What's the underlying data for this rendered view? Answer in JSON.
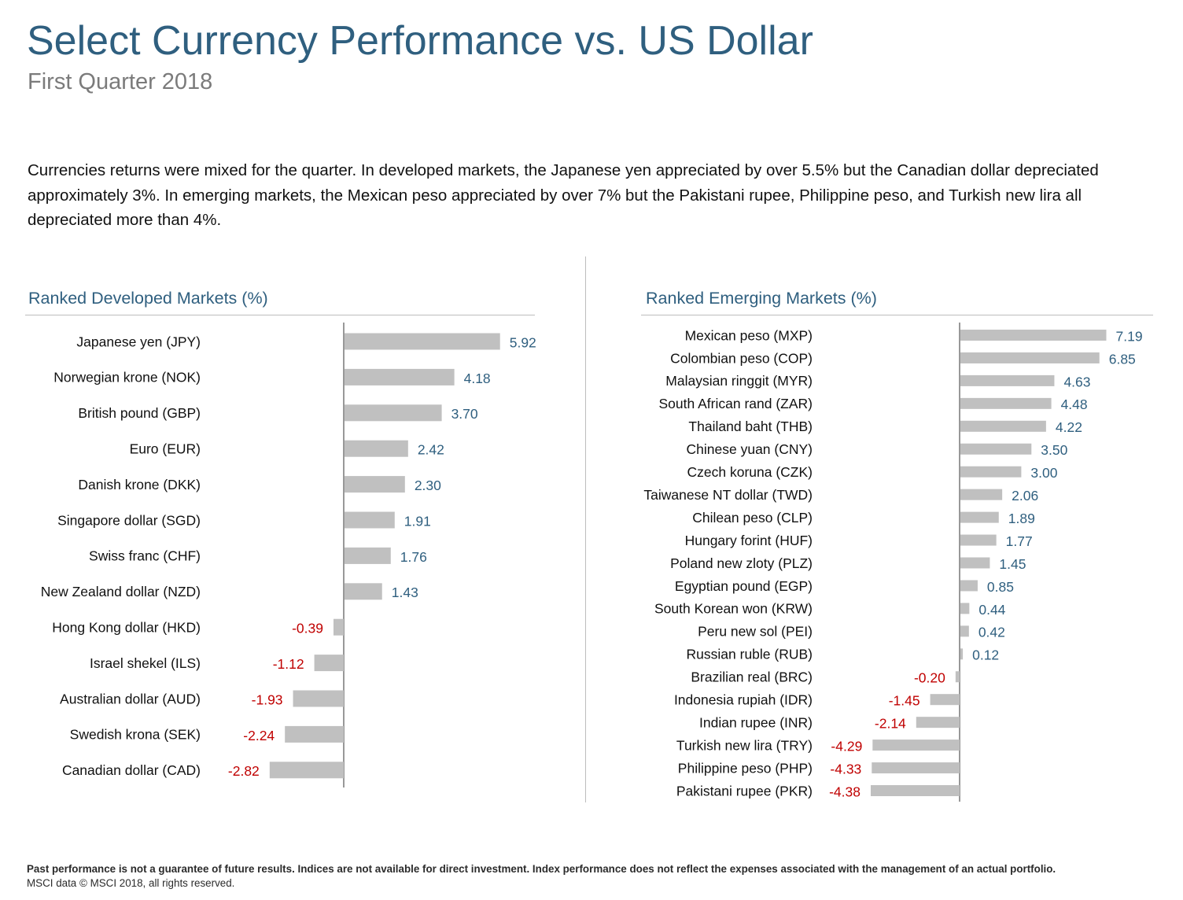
{
  "header": {
    "title": "Select Currency Performance vs. US Dollar",
    "subtitle": "First Quarter 2018"
  },
  "summary": "Currencies returns were mixed for the quarter. In developed markets, the Japanese yen appreciated by over 5.5% but the Canadian dollar depreciated approximately 3%. In emerging markets, the Mexican peso appreciated by over 7% but the Pakistani rupee, Philippine peso, and Turkish new lira all depreciated more than 4%.",
  "colors": {
    "title": "#2f5f7f",
    "bar": "#c0c0c0",
    "positive_label": "#2f5f7f",
    "negative_label": "#c00000"
  },
  "chart_data": [
    {
      "type": "bar",
      "orientation": "horizontal",
      "title": "Ranked Developed Markets (%)",
      "categories": [
        "Japanese yen (JPY)",
        "Norwegian krone (NOK)",
        "British pound (GBP)",
        "Euro (EUR)",
        "Danish krone (DKK)",
        "Singapore dollar (SGD)",
        "Swiss franc (CHF)",
        "New Zealand dollar (NZD)",
        "Hong Kong dollar (HKD)",
        "Israel shekel (ILS)",
        "Australian dollar (AUD)",
        "Swedish krona (SEK)",
        "Canadian dollar (CAD)"
      ],
      "values": [
        5.92,
        4.18,
        3.7,
        2.42,
        2.3,
        1.91,
        1.76,
        1.43,
        -0.39,
        -1.12,
        -1.93,
        -2.24,
        -2.82
      ],
      "labels": [
        "5.92",
        "4.18",
        "3.70",
        "2.42",
        "2.30",
        "1.91",
        "1.76",
        "1.43",
        "-0.39",
        "-1.12",
        "-1.93",
        "-2.24",
        "-2.82"
      ]
    },
    {
      "type": "bar",
      "orientation": "horizontal",
      "title": "Ranked Emerging Markets (%)",
      "categories": [
        "Mexican peso (MXP)",
        "Colombian peso (COP)",
        "Malaysian ringgit (MYR)",
        "South African rand (ZAR)",
        "Thailand baht (THB)",
        "Chinese yuan (CNY)",
        "Czech koruna (CZK)",
        "Taiwanese NT dollar (TWD)",
        "Chilean peso (CLP)",
        "Hungary forint (HUF)",
        "Poland new zloty (PLZ)",
        "Egyptian pound (EGP)",
        "South Korean won (KRW)",
        "Peru new sol (PEI)",
        "Russian ruble (RUB)",
        "Brazilian real (BRC)",
        "Indonesia rupiah (IDR)",
        "Indian rupee (INR)",
        "Turkish new lira (TRY)",
        "Philippine peso (PHP)",
        "Pakistani rupee (PKR)"
      ],
      "values": [
        7.19,
        6.85,
        4.63,
        4.48,
        4.22,
        3.5,
        3.0,
        2.06,
        1.89,
        1.77,
        1.45,
        0.85,
        0.44,
        0.42,
        0.12,
        -0.2,
        -1.45,
        -2.14,
        -4.29,
        -4.33,
        -4.38
      ],
      "labels": [
        "7.19",
        "6.85",
        "4.63",
        "4.48",
        "4.22",
        "3.50",
        "3.00",
        "2.06",
        "1.89",
        "1.77",
        "1.45",
        "0.85",
        "0.44",
        "0.42",
        "0.12",
        "-0.20",
        "-1.45",
        "-2.14",
        "-4.29",
        "-4.33",
        "-4.38"
      ]
    }
  ],
  "footer": {
    "disclaimer": "Past performance is not a guarantee of future results. Indices are not available for direct investment. Index performance does not reflect the expenses associated with the management of an actual portfolio.",
    "source": "MSCI data © MSCI 2018, all rights reserved."
  }
}
